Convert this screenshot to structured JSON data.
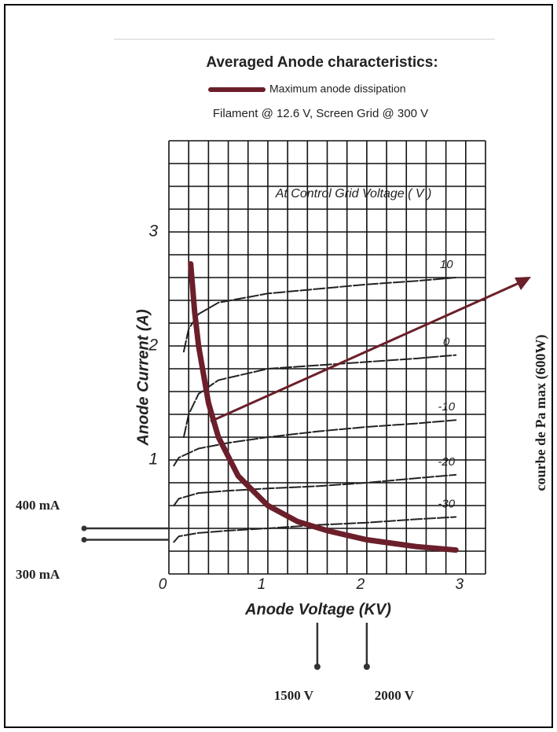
{
  "chart_data": {
    "type": "line",
    "title": "Averaged Anode characteristics:",
    "subtitle": "Filament @ 12.6 V, Screen Grid @ 300 V",
    "annotation": "At Control Grid Voltage ( V )",
    "side_note": "courbe de Pa max (600W)",
    "x_label": "Anode Voltage (KV)",
    "y_label": "Anode Current (A)",
    "xlim": [
      0,
      3.2
    ],
    "ylim": [
      0,
      3.8
    ],
    "xticks": [
      0,
      1,
      2,
      3
    ],
    "yticks": [
      1,
      2,
      3
    ],
    "xgrid": [
      0,
      0.2,
      0.4,
      0.6,
      0.8,
      1,
      1.2,
      1.4,
      1.6,
      1.8,
      2,
      2.2,
      2.4,
      2.6,
      2.8,
      3,
      3.2
    ],
    "ygrid": [
      0,
      0.2,
      0.4,
      0.6,
      0.8,
      1,
      1.2,
      1.4,
      1.6,
      1.8,
      2,
      2.2,
      2.4,
      2.6,
      2.8,
      3,
      3.2,
      3.4,
      3.6,
      3.8
    ],
    "series": [
      {
        "name": "10",
        "color": "#222222",
        "x": [
          0.15,
          0.2,
          0.3,
          0.5,
          1,
          1.5,
          2,
          2.5,
          2.9
        ],
        "values": [
          1.95,
          2.15,
          2.28,
          2.38,
          2.46,
          2.5,
          2.54,
          2.57,
          2.6
        ]
      },
      {
        "name": "0",
        "color": "#222222",
        "x": [
          0.15,
          0.2,
          0.3,
          0.5,
          1,
          1.5,
          2,
          2.5,
          2.9
        ],
        "values": [
          1.2,
          1.4,
          1.58,
          1.7,
          1.8,
          1.83,
          1.86,
          1.89,
          1.92
        ]
      },
      {
        "name": "-10",
        "color": "#222222",
        "x": [
          0.05,
          0.1,
          0.3,
          0.6,
          1,
          1.5,
          2,
          2.5,
          2.9
        ],
        "values": [
          0.95,
          1.02,
          1.1,
          1.15,
          1.2,
          1.25,
          1.29,
          1.32,
          1.35
        ]
      },
      {
        "name": "-20",
        "color": "#222222",
        "x": [
          0.05,
          0.1,
          0.3,
          0.6,
          1,
          1.5,
          2,
          2.5,
          2.9
        ],
        "values": [
          0.6,
          0.66,
          0.71,
          0.73,
          0.75,
          0.77,
          0.8,
          0.84,
          0.87
        ]
      },
      {
        "name": "-30",
        "color": "#222222",
        "x": [
          0.05,
          0.1,
          0.3,
          0.6,
          1,
          1.5,
          2,
          2.5,
          2.9
        ],
        "values": [
          0.28,
          0.33,
          0.36,
          0.38,
          0.4,
          0.43,
          0.45,
          0.48,
          0.5
        ]
      },
      {
        "name": "Maximum anode dissipation",
        "color": "#6b1f2a",
        "x": [
          0.22,
          0.26,
          0.3,
          0.4,
          0.5,
          0.7,
          1,
          1.3,
          1.6,
          2,
          2.5,
          2.9
        ],
        "values": [
          2.72,
          2.3,
          2.0,
          1.5,
          1.2,
          0.86,
          0.6,
          0.46,
          0.38,
          0.3,
          0.24,
          0.21
        ]
      }
    ],
    "reference_lines": [
      {
        "label": "400 mA",
        "axis": "y",
        "value": 0.4
      },
      {
        "label": "300 mA",
        "axis": "y",
        "value": 0.3
      },
      {
        "label": "1500 V",
        "axis": "x",
        "value": 1.5
      },
      {
        "label": "2000 V",
        "axis": "x",
        "value": 2.0
      }
    ]
  }
}
